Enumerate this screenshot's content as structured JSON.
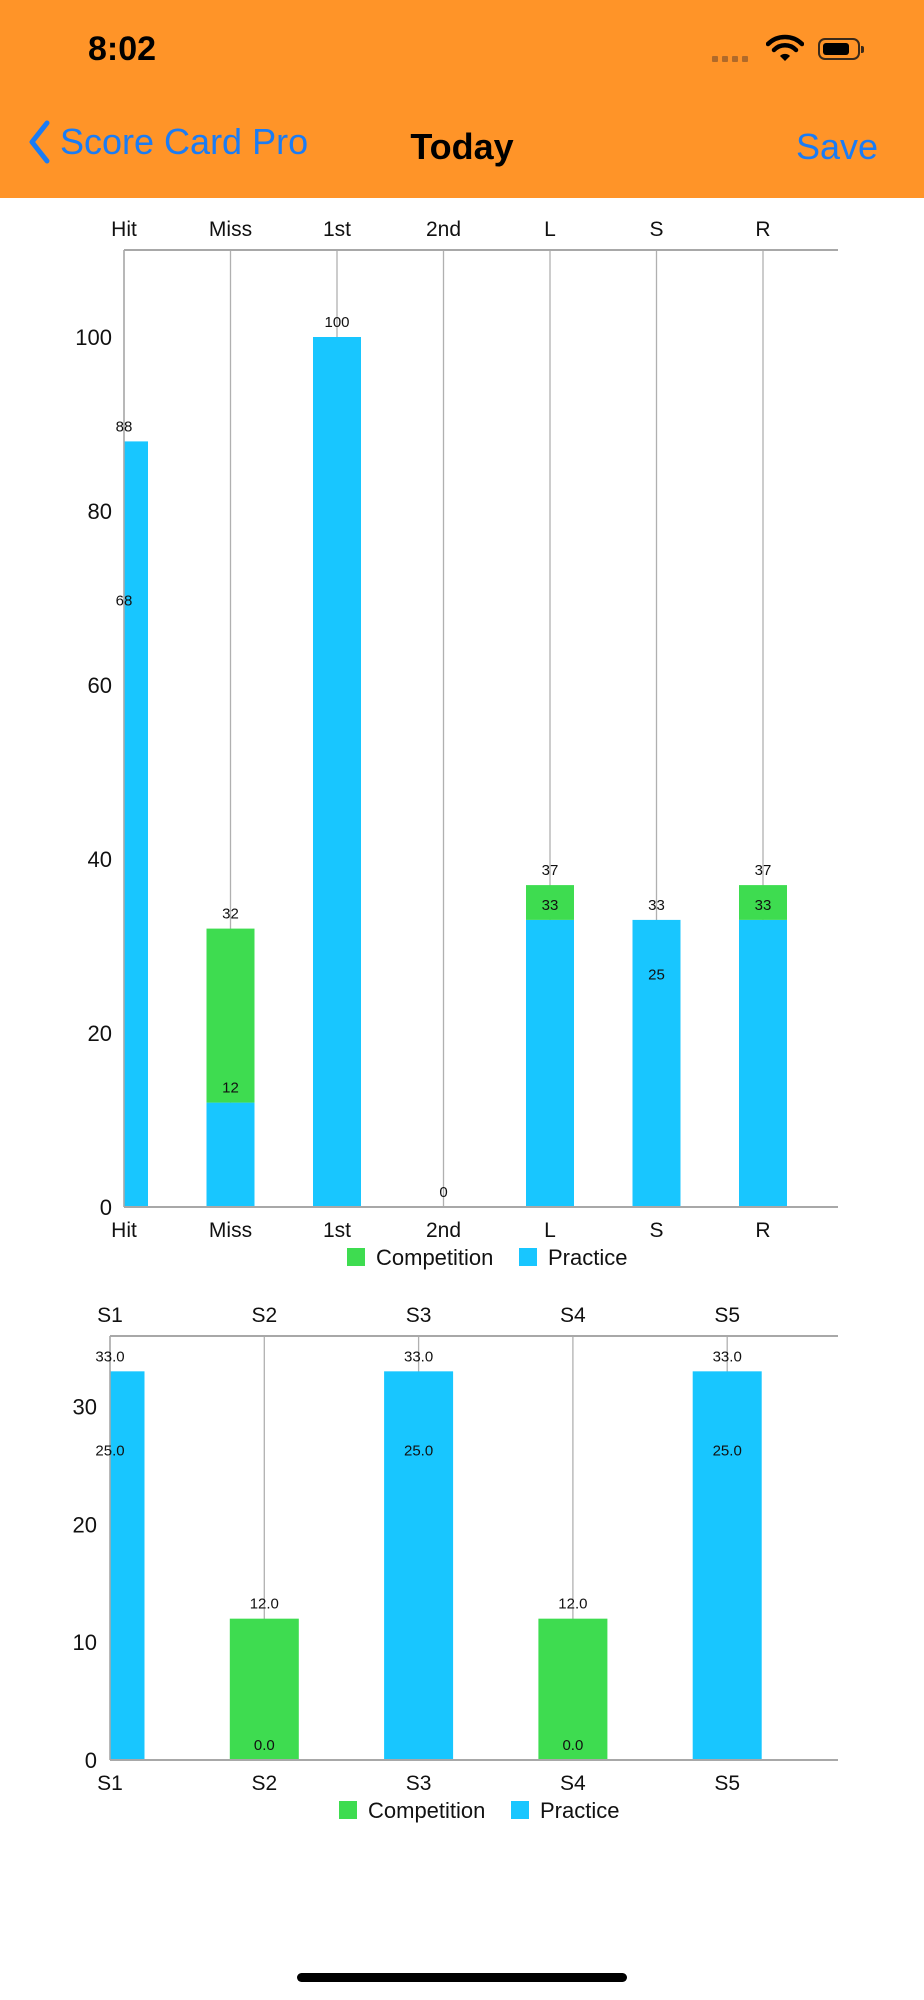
{
  "status_bar": {
    "time": "8:02"
  },
  "nav": {
    "back_label": "Score Card Pro",
    "title": "Today",
    "save_label": "Save"
  },
  "colors": {
    "header": "#FF9428",
    "link": "#1A7CF5",
    "practice": "#18C6FF",
    "competition": "#3EDC50"
  },
  "chart_data": [
    {
      "type": "bar",
      "stacked": true,
      "categories": [
        "Hit",
        "Miss",
        "1st",
        "2nd",
        "L",
        "S",
        "R"
      ],
      "series": [
        {
          "name": "Practice",
          "values": [
            88,
            12,
            100,
            0,
            33,
            33,
            33
          ]
        },
        {
          "name": "Competition",
          "values": [
            0,
            20,
            0,
            0,
            4,
            0,
            4
          ]
        }
      ],
      "data_labels": [
        {
          "category": 0,
          "text": "88",
          "value": 88
        },
        {
          "category": 0,
          "text": "68",
          "value": 68
        },
        {
          "category": 1,
          "text": "32",
          "value": 32
        },
        {
          "category": 1,
          "text": "12",
          "value": 12
        },
        {
          "category": 2,
          "text": "100",
          "value": 100
        },
        {
          "category": 3,
          "text": "0",
          "value": 0
        },
        {
          "category": 4,
          "text": "37",
          "value": 37
        },
        {
          "category": 4,
          "text": "33",
          "value": 33
        },
        {
          "category": 5,
          "text": "33",
          "value": 33
        },
        {
          "category": 5,
          "text": "25",
          "value": 25
        },
        {
          "category": 6,
          "text": "37",
          "value": 37
        },
        {
          "category": 6,
          "text": "33",
          "value": 33
        }
      ],
      "yticks": [
        "0",
        "20",
        "40",
        "60",
        "80",
        "100"
      ],
      "ylim": [
        0,
        110
      ],
      "legend": [
        "Competition",
        "Practice"
      ],
      "legend_position": "bottom-center",
      "grid": "vertical"
    },
    {
      "type": "bar",
      "stacked": true,
      "categories": [
        "S1",
        "S2",
        "S3",
        "S4",
        "S5"
      ],
      "series": [
        {
          "name": "Practice",
          "values": [
            33,
            0,
            33,
            0,
            33
          ]
        },
        {
          "name": "Competition",
          "values": [
            0,
            12,
            0,
            12,
            0
          ]
        }
      ],
      "data_labels": [
        {
          "category": 0,
          "text": "33.0",
          "value": 33
        },
        {
          "category": 0,
          "text": "25.0",
          "value": 25
        },
        {
          "category": 1,
          "text": "12.0",
          "value": 12
        },
        {
          "category": 1,
          "text": "0.0",
          "value": 0
        },
        {
          "category": 2,
          "text": "33.0",
          "value": 33
        },
        {
          "category": 2,
          "text": "25.0",
          "value": 25
        },
        {
          "category": 3,
          "text": "12.0",
          "value": 12
        },
        {
          "category": 3,
          "text": "0.0",
          "value": 0
        },
        {
          "category": 4,
          "text": "33.0",
          "value": 33
        },
        {
          "category": 4,
          "text": "25.0",
          "value": 25
        }
      ],
      "yticks": [
        "0",
        "10",
        "20",
        "30"
      ],
      "ylim": [
        0,
        36
      ],
      "legend": [
        "Competition",
        "Practice"
      ],
      "legend_position": "bottom-center",
      "grid": "vertical"
    }
  ]
}
